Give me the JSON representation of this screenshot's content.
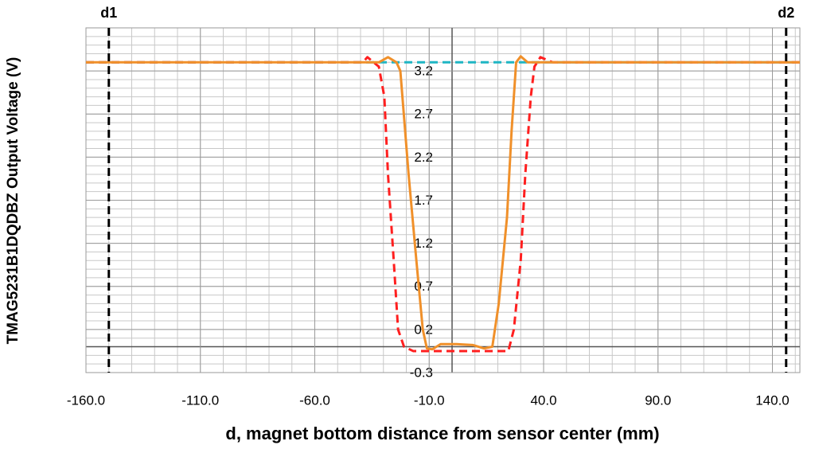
{
  "chart_data": {
    "type": "line",
    "x_label": "d, magnet bottom distance from sensor center (mm)",
    "y_label": "TMAG5231B1DQDBZ Output Voltage (V)",
    "xlim": [
      -160,
      152
    ],
    "ylim": [
      -0.3,
      3.7
    ],
    "xticks": [
      {
        "value": -160,
        "label": "-160.0"
      },
      {
        "value": -110,
        "label": "-110.0"
      },
      {
        "value": -60,
        "label": "-60.0"
      },
      {
        "value": -10,
        "label": "-10.0"
      },
      {
        "value": 40,
        "label": "40.0"
      },
      {
        "value": 90,
        "label": "90.0"
      },
      {
        "value": 140,
        "label": "140.0"
      }
    ],
    "yticks": [
      -0.3,
      0.2,
      0.7,
      1.2,
      1.7,
      2.2,
      2.7,
      3.2
    ],
    "grid": true,
    "markers": [
      {
        "label": "d1",
        "x": -150,
        "color": "#000000"
      },
      {
        "label": "d2",
        "x": 146,
        "color": "#000000"
      }
    ],
    "series": [
      {
        "color": "#1fb5c4",
        "dash": true,
        "x": [
          -160,
          152
        ],
        "values": [
          3.3,
          3.3
        ]
      },
      {
        "color": "#ff1f1f",
        "dash": true,
        "x": [
          -160,
          -39,
          -37,
          -32,
          -29.6,
          -28,
          -25.5,
          -23.6,
          -21,
          -17,
          10.6,
          24.6,
          27,
          30,
          32,
          34.4,
          36,
          38.6,
          44,
          152
        ],
        "values": [
          3.3,
          3.3,
          3.36,
          3.25,
          2.9,
          2.0,
          1.0,
          0.2,
          0.0,
          -0.05,
          -0.05,
          -0.05,
          0.2,
          1.0,
          2.0,
          2.9,
          3.25,
          3.36,
          3.3,
          3.3
        ]
      },
      {
        "color": "#f0902a",
        "dash": false,
        "x": [
          -160,
          -32,
          -28,
          -24.3,
          -22.6,
          -19,
          -15.6,
          -12.8,
          -11,
          -8.6,
          -5,
          2,
          9,
          14,
          17.6,
          20.4,
          24,
          26,
          28,
          30,
          33,
          152
        ],
        "values": [
          3.3,
          3.3,
          3.36,
          3.3,
          3.2,
          2.0,
          1.0,
          0.2,
          -0.02,
          -0.03,
          0.03,
          0.03,
          0.02,
          -0.02,
          0.0,
          0.5,
          1.5,
          2.5,
          3.3,
          3.37,
          3.3,
          3.3
        ]
      }
    ]
  }
}
